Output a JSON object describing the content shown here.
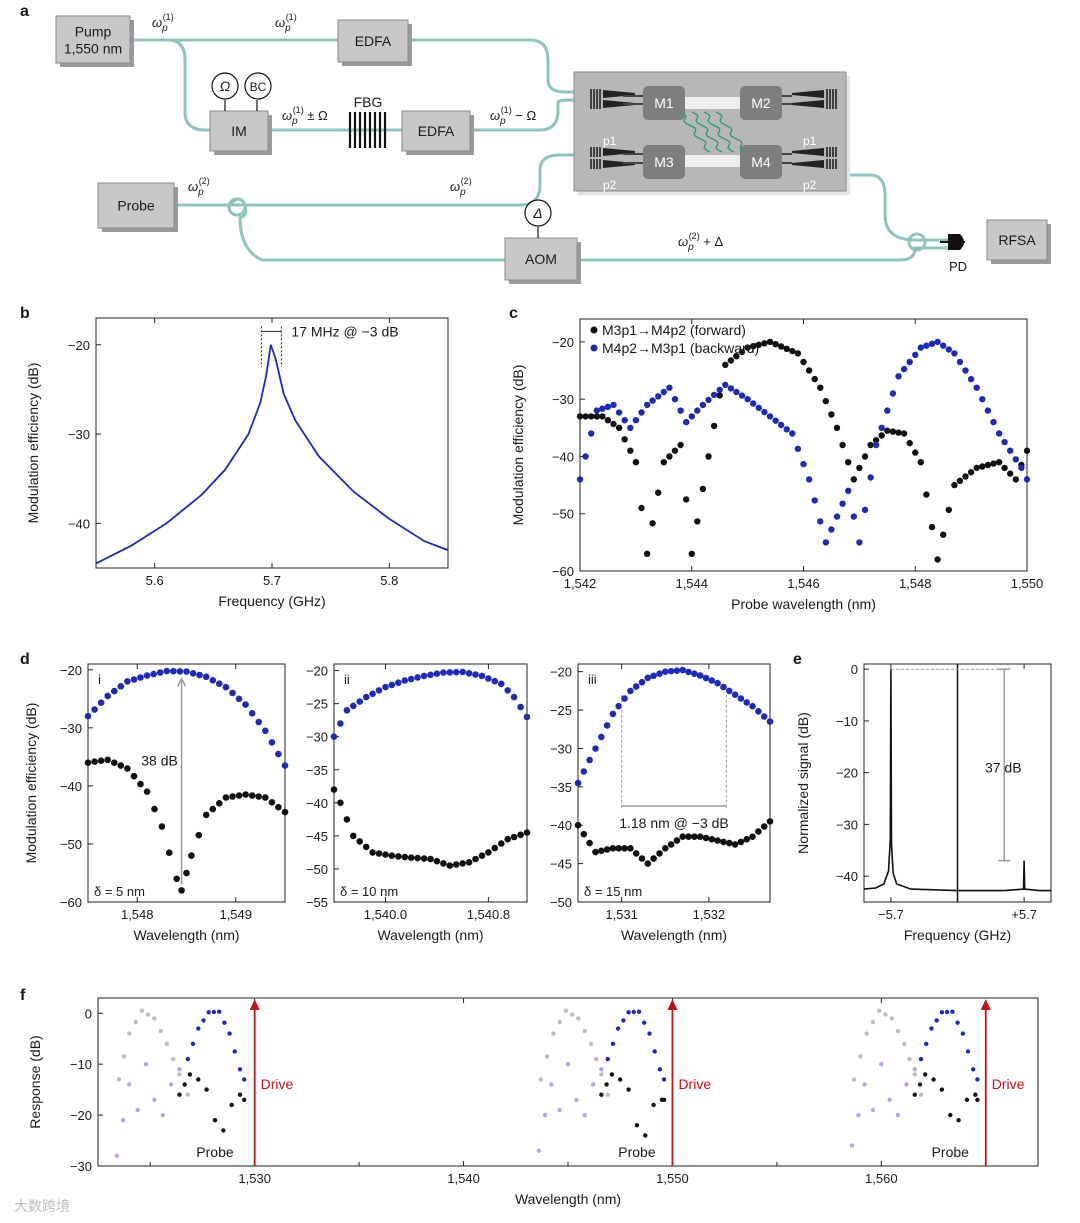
{
  "panel_letters": [
    "a",
    "b",
    "c",
    "d",
    "e",
    "f"
  ],
  "watermark": "大数跨境",
  "colors": {
    "blue": "#1f2bb5",
    "black": "#111111",
    "fiber": "#8fc4bc",
    "box": "#c8c8c8",
    "gray_pts": "#bdbdbd",
    "lightblue_pts": "#a9a9e6",
    "red": "#c0131b",
    "mbox": "#7e7e7e",
    "chip": "#b7b7b7"
  },
  "schematic": {
    "pump": [
      "Pump",
      "1,550 nm"
    ],
    "edfa": "EDFA",
    "im": "IM",
    "fbg": "FBG",
    "probe": "Probe",
    "aom": "AOM",
    "rfsa": "RFSA",
    "pd": "PD",
    "omega": "Ω",
    "bc": "BC",
    "delta": "Δ",
    "modules": [
      "M1",
      "M2",
      "M3",
      "M4"
    ],
    "ports": [
      "p1",
      "p2"
    ],
    "freq_labels": [
      "ω",
      "p",
      "(1)",
      "(2)",
      " ± Ω",
      " − Ω",
      " + Δ"
    ]
  },
  "chart_data": [
    {
      "id": "b",
      "type": "line",
      "title": "",
      "xlabel": "Frequency (GHz)",
      "ylabel": "Modulation efficiency (dB)",
      "xlim": [
        5.55,
        5.85
      ],
      "ylim": [
        -45,
        -17
      ],
      "xticks": [
        "5.6",
        "5.7",
        "5.8"
      ],
      "yticks": [
        "−20",
        "−30",
        "−40"
      ],
      "annotation": "17 MHz @ −3 dB",
      "series": [
        {
          "name": "resonance",
          "x": [
            5.55,
            5.58,
            5.61,
            5.64,
            5.66,
            5.68,
            5.69,
            5.695,
            5.699,
            5.703,
            5.71,
            5.72,
            5.74,
            5.77,
            5.8,
            5.83,
            5.85
          ],
          "y": [
            -44.5,
            -42.5,
            -40.0,
            -36.8,
            -34.0,
            -30.0,
            -26.5,
            -23.5,
            -20.0,
            -21.5,
            -25.5,
            -28.5,
            -32.5,
            -36.5,
            -39.5,
            -42.0,
            -43.0
          ]
        }
      ]
    },
    {
      "id": "c",
      "type": "scatter",
      "xlabel": "Probe wavelength (nm)",
      "ylabel": "Modulation efficiency (dB)",
      "xlim": [
        1542,
        1550
      ],
      "ylim": [
        -60,
        -16
      ],
      "xticks": [
        "1,542",
        "1,544",
        "1,546",
        "1,548",
        "1,550"
      ],
      "yticks": [
        "−20",
        "−30",
        "−40",
        "−50",
        "−60"
      ],
      "legend": [
        "M3p1→M4p2 (forward)",
        "M4p2→M3p1 (backward)"
      ],
      "series": [
        {
          "name": "forward",
          "x": [
            1542.0,
            1542.4,
            1542.7,
            1543.0,
            1543.2,
            1543.5,
            1543.8,
            1544.0,
            1544.3,
            1544.6,
            1545.0,
            1545.4,
            1545.9,
            1546.3,
            1546.6,
            1546.9,
            1547.2,
            1547.5,
            1547.8,
            1548.1,
            1548.4,
            1548.7,
            1549.1,
            1549.5,
            1549.8,
            1550.0
          ],
          "y": [
            -33,
            -33,
            -35,
            -41,
            -57,
            -41,
            -38,
            -57,
            -40,
            -24,
            -21,
            -20,
            -22,
            -28,
            -35,
            -44,
            -38,
            -35.5,
            -36,
            -41,
            -58,
            -45,
            -42,
            -41,
            -44,
            -39
          ]
        },
        {
          "name": "backward",
          "x": [
            1542.0,
            1542.3,
            1542.6,
            1542.9,
            1543.2,
            1543.6,
            1543.9,
            1544.2,
            1544.6,
            1545.0,
            1545.4,
            1545.8,
            1546.1,
            1546.4,
            1546.8,
            1547.0,
            1547.3,
            1547.7,
            1548.1,
            1548.4,
            1548.7,
            1549.1,
            1549.5,
            1549.9,
            1550.0
          ],
          "y": [
            -44,
            -32,
            -31,
            -35,
            -31,
            -28,
            -34,
            -31,
            -27.5,
            -30,
            -33,
            -36,
            -44,
            -55,
            -46,
            -55,
            -38,
            -26,
            -21,
            -20,
            -22,
            -28,
            -36,
            -42,
            -44
          ]
        }
      ]
    },
    {
      "id": "d-i",
      "type": "scatter",
      "roman": "i",
      "delta_label": "δ = 5 nm",
      "annotation": "38 dB",
      "xlabel": "Wavelength (nm)",
      "ylabel": "Modulation efficiency (dB)",
      "xlim": [
        1547.5,
        1549.5
      ],
      "ylim": [
        -60,
        -19
      ],
      "xticks": [
        "1,548",
        "1,549"
      ],
      "yticks": [
        "−20",
        "−30",
        "−40",
        "−50",
        "−60"
      ],
      "series": [
        {
          "name": "blue",
          "x": [
            1547.5,
            1547.7,
            1547.9,
            1548.1,
            1548.3,
            1548.5,
            1548.7,
            1548.9,
            1549.1,
            1549.3,
            1549.5
          ],
          "y": [
            -28,
            -24.5,
            -22,
            -21,
            -20.2,
            -20.3,
            -21.2,
            -23,
            -26,
            -30.5,
            -36.5
          ]
        },
        {
          "name": "black",
          "x": [
            1547.5,
            1547.7,
            1547.9,
            1548.1,
            1548.25,
            1548.4,
            1548.45,
            1548.55,
            1548.7,
            1548.9,
            1549.1,
            1549.3,
            1549.5
          ],
          "y": [
            -36,
            -35.5,
            -37,
            -41,
            -47,
            -56,
            -58,
            -52,
            -45,
            -42,
            -41.5,
            -42,
            -44.5
          ]
        }
      ]
    },
    {
      "id": "d-ii",
      "type": "scatter",
      "roman": "ii",
      "delta_label": "δ = 10 nm",
      "xlabel": "Wavelength (nm)",
      "ylabel": "",
      "xlim": [
        1539.6,
        1541.1
      ],
      "ylim": [
        -55,
        -19
      ],
      "xticks": [
        "1,540.0",
        "1,540.8"
      ],
      "yticks": [
        "−20",
        "−25",
        "−30",
        "−35",
        "−40",
        "−45",
        "−50",
        "−55"
      ],
      "series": [
        {
          "name": "blue",
          "x": [
            1539.6,
            1539.7,
            1539.85,
            1540.0,
            1540.15,
            1540.3,
            1540.45,
            1540.6,
            1540.75,
            1540.9,
            1541.0,
            1541.1
          ],
          "y": [
            -30,
            -26,
            -24,
            -22.5,
            -21.5,
            -20.8,
            -20.3,
            -20.2,
            -20.8,
            -22,
            -24,
            -27
          ]
        },
        {
          "name": "black",
          "x": [
            1539.6,
            1539.65,
            1539.75,
            1539.9,
            1540.05,
            1540.2,
            1540.35,
            1540.5,
            1540.65,
            1540.8,
            1540.95,
            1541.1
          ],
          "y": [
            -38,
            -40,
            -45,
            -47.5,
            -48,
            -48.3,
            -48.5,
            -49.5,
            -49,
            -47.5,
            -45.5,
            -44.5
          ]
        }
      ]
    },
    {
      "id": "d-iii",
      "type": "scatter",
      "roman": "iii",
      "delta_label": "δ = 15 nm",
      "annotation": "1.18 nm @ −3 dB",
      "xlabel": "Wavelength (nm)",
      "ylabel": "",
      "xlim": [
        1530.5,
        1532.7
      ],
      "ylim": [
        -50,
        -19
      ],
      "xticks": [
        "1,531",
        "1,532"
      ],
      "yticks": [
        "−20",
        "−25",
        "−30",
        "−35",
        "−40",
        "−45",
        "−50"
      ],
      "series": [
        {
          "name": "blue",
          "x": [
            1530.5,
            1530.7,
            1530.9,
            1531.1,
            1531.3,
            1531.5,
            1531.7,
            1531.9,
            1532.1,
            1532.3,
            1532.5,
            1532.7
          ],
          "y": [
            -34.5,
            -30,
            -25.5,
            -22.5,
            -20.8,
            -20,
            -19.8,
            -20.5,
            -21.5,
            -23,
            -24.5,
            -26.5
          ]
        },
        {
          "name": "black",
          "x": [
            1530.5,
            1530.7,
            1530.9,
            1531.1,
            1531.3,
            1531.5,
            1531.7,
            1531.9,
            1532.1,
            1532.3,
            1532.5,
            1532.7
          ],
          "y": [
            -40,
            -43.5,
            -43,
            -43,
            -45,
            -43,
            -41.5,
            -41.5,
            -42,
            -42.5,
            -41.5,
            -39.5
          ]
        }
      ]
    },
    {
      "id": "e",
      "type": "line",
      "xlabel": "Frequency (GHz)",
      "ylabel": "Normalized signal (dB)",
      "xlim": [
        -8,
        8
      ],
      "ylim": [
        -45,
        1
      ],
      "xticks": [
        "−5.7",
        "+5.7"
      ],
      "yticks": [
        "0",
        "−10",
        "−20",
        "−30",
        "−40"
      ],
      "annotation": "37 dB",
      "series": [
        {
          "name": "spectrum",
          "x": [
            -8,
            -7,
            -6.3,
            -5.9,
            -5.75,
            -5.7,
            -5.65,
            -5.5,
            -5.2,
            -4,
            0,
            4,
            5.65,
            5.7,
            5.75,
            7,
            8
          ],
          "y": [
            -42.5,
            -42.3,
            -41.5,
            -39,
            -33,
            0,
            -34,
            -39.5,
            -41.5,
            -42.5,
            -42.8,
            -42.8,
            -42.5,
            -37,
            -42.5,
            -42.8,
            -42.8
          ]
        }
      ]
    },
    {
      "id": "f",
      "type": "scatter",
      "xlabel": "Wavelength (nm)",
      "ylabel": "Response (dB)",
      "xlim": [
        1522.5,
        1567.5
      ],
      "ylim": [
        -30,
        3
      ],
      "xticks": [
        "1,530",
        "1,540",
        "1,550",
        "1,560"
      ],
      "yticks": [
        "0",
        "−10",
        "−20",
        "−30"
      ],
      "drive_label": "Drive",
      "probe_label": "Probe",
      "drive_x": [
        1530,
        1550,
        1565
      ],
      "groups": [
        {
          "gray_x": [
            1523.5,
            1524.0,
            1524.6,
            1525.2,
            1525.8,
            1526.4,
            1526.8
          ],
          "gray_y": [
            -13,
            -4,
            0.5,
            -1,
            -6,
            -12,
            -16
          ],
          "light_x": [
            1523.4,
            1523.7,
            1524.0,
            1524.4,
            1524.8,
            1525.2,
            1525.6,
            1526.0,
            1526.4
          ],
          "light_y": [
            -28,
            -21,
            -14,
            -19,
            -10,
            -17,
            -20,
            -14,
            -11
          ],
          "blue_x": [
            1526.8,
            1527.3,
            1527.8,
            1528.3,
            1528.8,
            1529.3,
            1529.5
          ],
          "blue_y": [
            -9,
            -3,
            0.2,
            0.3,
            -4,
            -11,
            -13
          ],
          "black_x": [
            1526.4,
            1526.9,
            1527.3,
            1527.7,
            1528.1,
            1528.5,
            1528.9,
            1529.3,
            1529.5
          ],
          "black_y": [
            -16,
            -12,
            -13,
            -15,
            -21,
            -23,
            -18,
            -16,
            -17
          ]
        },
        {
          "gray_x": [
            1543.7,
            1544.3,
            1544.9,
            1545.5,
            1546.1,
            1546.6,
            1546.9
          ],
          "gray_y": [
            -13,
            -4,
            0.5,
            -1,
            -6,
            -12,
            -16
          ],
          "light_x": [
            1543.6,
            1543.9,
            1544.2,
            1544.6,
            1545.0,
            1545.4,
            1545.8,
            1546.2,
            1546.6
          ],
          "light_y": [
            -27,
            -20,
            -14,
            -19,
            -10,
            -17,
            -20,
            -14,
            -11
          ],
          "blue_x": [
            1546.9,
            1547.4,
            1547.9,
            1548.4,
            1548.9,
            1549.4,
            1549.6
          ],
          "blue_y": [
            -9,
            -3,
            0.2,
            0.3,
            -4,
            -11,
            -13
          ],
          "black_x": [
            1546.6,
            1547.1,
            1547.5,
            1547.9,
            1548.3,
            1548.7,
            1549.1,
            1549.5,
            1549.6
          ],
          "black_y": [
            -16,
            -12,
            -13,
            -15,
            -22,
            -24,
            -18,
            -17,
            -17
          ]
        },
        {
          "gray_x": [
            1558.7,
            1559.3,
            1559.9,
            1560.5,
            1561.1,
            1561.6,
            1561.9
          ],
          "gray_y": [
            -13,
            -4,
            0.5,
            -1,
            -6,
            -12,
            -16
          ],
          "light_x": [
            1558.6,
            1558.9,
            1559.2,
            1559.6,
            1560.0,
            1560.4,
            1560.8,
            1561.2,
            1561.6
          ],
          "light_y": [
            -26,
            -20,
            -14,
            -19,
            -10,
            -17,
            -20,
            -14,
            -11
          ],
          "blue_x": [
            1561.9,
            1562.4,
            1562.9,
            1563.4,
            1563.9,
            1564.4,
            1564.6
          ],
          "blue_y": [
            -9,
            -3,
            0.2,
            0.3,
            -4,
            -11,
            -13
          ],
          "black_x": [
            1561.6,
            1562.1,
            1562.5,
            1562.9,
            1563.3,
            1563.7,
            1564.1,
            1564.5,
            1564.6
          ],
          "black_y": [
            -16,
            -12,
            -13,
            -15,
            -20,
            -21,
            -17,
            -16,
            -17
          ]
        }
      ]
    }
  ]
}
